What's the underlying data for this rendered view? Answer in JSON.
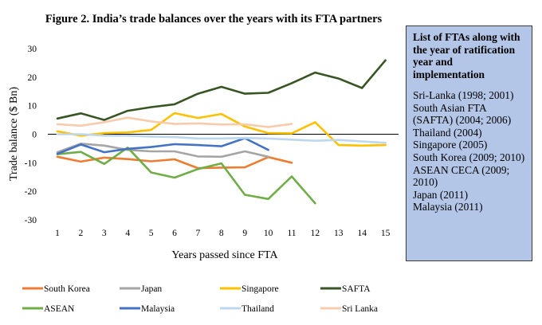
{
  "chart_data": {
    "type": "line",
    "title": "Figure 2. India’s trade balances over the years with its FTA partners",
    "xlabel": "Years passed since FTA",
    "ylabel": "Trade balance ($ Bn)",
    "ylim": [
      -30,
      30
    ],
    "yticks": [
      30,
      20,
      10,
      0,
      -10,
      -20,
      -30
    ],
    "xticks": [
      1,
      2,
      3,
      4,
      5,
      6,
      7,
      8,
      9,
      10,
      11,
      12,
      13,
      14,
      15
    ],
    "gridlines": false,
    "legend_position": "bottom",
    "series": [
      {
        "name": "South Korea",
        "color": "#ed7d31",
        "x": [
          1,
          2,
          3,
          4,
          5,
          6,
          7,
          8,
          9,
          10,
          11
        ],
        "values": [
          -7.9,
          -9.6,
          -8.2,
          -8.7,
          -9.5,
          -8.8,
          -11.9,
          -11.7,
          -11.6,
          -8.0,
          -10.0
        ]
      },
      {
        "name": "Japan",
        "color": "#a5a5a5",
        "x": [
          1,
          2,
          3,
          4,
          5,
          6,
          7,
          8,
          9,
          10
        ],
        "values": [
          -6.3,
          -3.3,
          -4.0,
          -5.5,
          -6.0,
          -6.0,
          -7.8,
          -7.9,
          -6.0,
          -7.9
        ]
      },
      {
        "name": "Singapore",
        "color": "#ffc000",
        "x": [
          1,
          2,
          3,
          4,
          5,
          6,
          7,
          8,
          9,
          10,
          11,
          12,
          13,
          14,
          15
        ],
        "values": [
          1.0,
          -0.5,
          0.4,
          0.6,
          1.5,
          7.4,
          5.7,
          7.1,
          2.7,
          0.4,
          0.3,
          4.2,
          -3.8,
          -4.0,
          -3.8
        ]
      },
      {
        "name": "SAFTA",
        "color": "#375623",
        "x": [
          1,
          2,
          3,
          4,
          5,
          6,
          7,
          8,
          9,
          10,
          11,
          12,
          13,
          14,
          15
        ],
        "values": [
          5.5,
          7.3,
          5.0,
          8.2,
          9.5,
          10.5,
          14.2,
          16.6,
          14.2,
          14.5,
          17.9,
          21.6,
          19.5,
          16.2,
          25.9
        ]
      },
      {
        "name": "ASEAN",
        "color": "#70ad47",
        "x": [
          1,
          2,
          3,
          4,
          5,
          6,
          7,
          8,
          9,
          10,
          11,
          12
        ],
        "values": [
          -7.0,
          -6.2,
          -10.4,
          -4.7,
          -13.4,
          -15.2,
          -12.2,
          -10.2,
          -21.2,
          -22.7,
          -14.8,
          -24.2
        ]
      },
      {
        "name": "Malaysia",
        "color": "#4472c4",
        "x": [
          1,
          2,
          3,
          4,
          5,
          6,
          7,
          8,
          9,
          10
        ],
        "values": [
          -6.9,
          -3.6,
          -6.3,
          -5.1,
          -4.5,
          -3.5,
          -3.8,
          -4.2,
          -1.4,
          -5.5
        ]
      },
      {
        "name": "Thailand",
        "color": "#bdd7ee",
        "x": [
          1,
          2,
          3,
          4,
          5,
          6,
          7,
          8,
          9,
          10,
          11,
          12,
          13,
          14,
          15
        ],
        "values": [
          0.0,
          0.0,
          -0.5,
          -0.5,
          -0.8,
          -1.0,
          -1.5,
          -1.5,
          -1.3,
          -1.5,
          -1.9,
          -2.3,
          -2.0,
          -2.5,
          -3.0
        ]
      },
      {
        "name": "Sri Lanka",
        "color": "#f8cbad",
        "x": [
          1,
          2,
          3,
          4,
          5,
          6,
          7,
          8,
          9,
          10,
          11
        ],
        "values": [
          3.5,
          3.0,
          4.2,
          5.8,
          4.5,
          3.6,
          3.8,
          3.4,
          3.5,
          2.5,
          3.6
        ]
      }
    ]
  },
  "info_box": {
    "title": "List of FTAs along with the year of ratification year and implementation",
    "items": [
      "Sri-Lanka (1998; 2001)",
      "South Asian FTA (SAFTA) (2004; 2006)",
      "Thailand (2004)",
      "Singapore (2005)",
      "South Korea (2009; 2010)",
      "ASEAN CECA (2009; 2010)",
      "Japan (2011)",
      "Malaysia (2011)"
    ]
  }
}
